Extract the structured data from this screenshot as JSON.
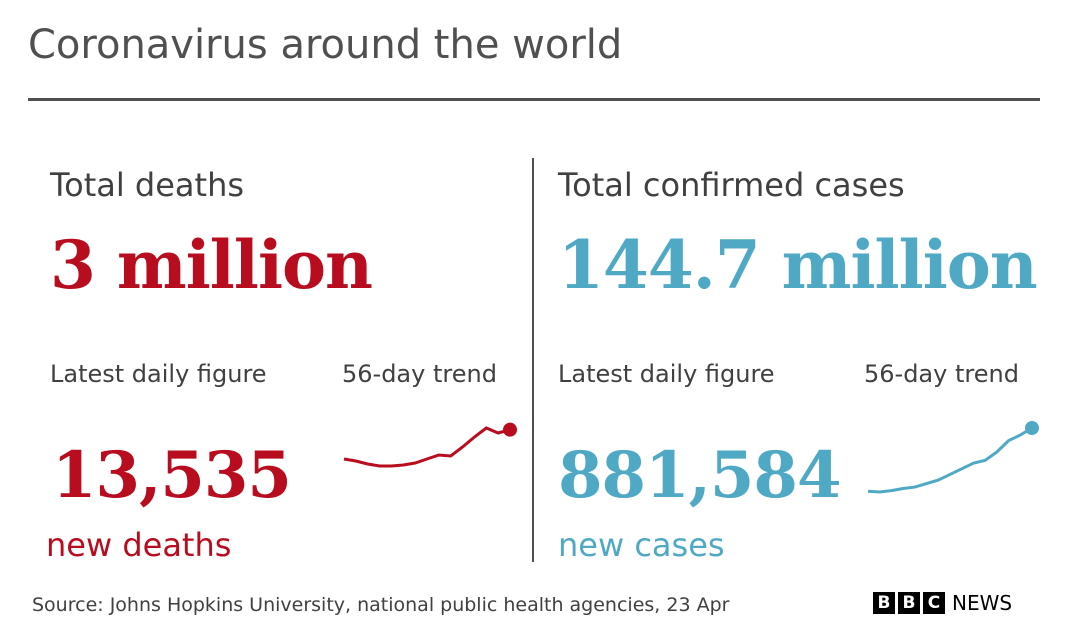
{
  "title": "Coronavirus around the world",
  "panels": [
    {
      "heading": "Total deaths",
      "total": "3 million",
      "daily_label": "Latest daily figure",
      "trend_label": "56-day trend",
      "daily": "13,535",
      "daily_caption": "new deaths",
      "color": "#b80c1f",
      "trend": [
        10600,
        10400,
        10100,
        9900,
        9900,
        10000,
        10200,
        10600,
        11000,
        10900,
        11800,
        12800,
        13700,
        13200,
        13535
      ]
    },
    {
      "heading": "Total confirmed cases",
      "total": "144.7 million",
      "daily_label": "Latest daily figure",
      "trend_label": "56-day trend",
      "daily": "881,584",
      "daily_caption": "new cases",
      "color": "#4fa9c4",
      "trend": [
        400000,
        395000,
        405000,
        420000,
        430000,
        455000,
        480000,
        520000,
        560000,
        600000,
        620000,
        680000,
        760000,
        800000,
        850000
      ]
    }
  ],
  "source": "Source: Johns Hopkins University, national public health agencies, 23 Apr",
  "logo": {
    "bbc": [
      "B",
      "B",
      "C"
    ],
    "news": "NEWS"
  }
}
